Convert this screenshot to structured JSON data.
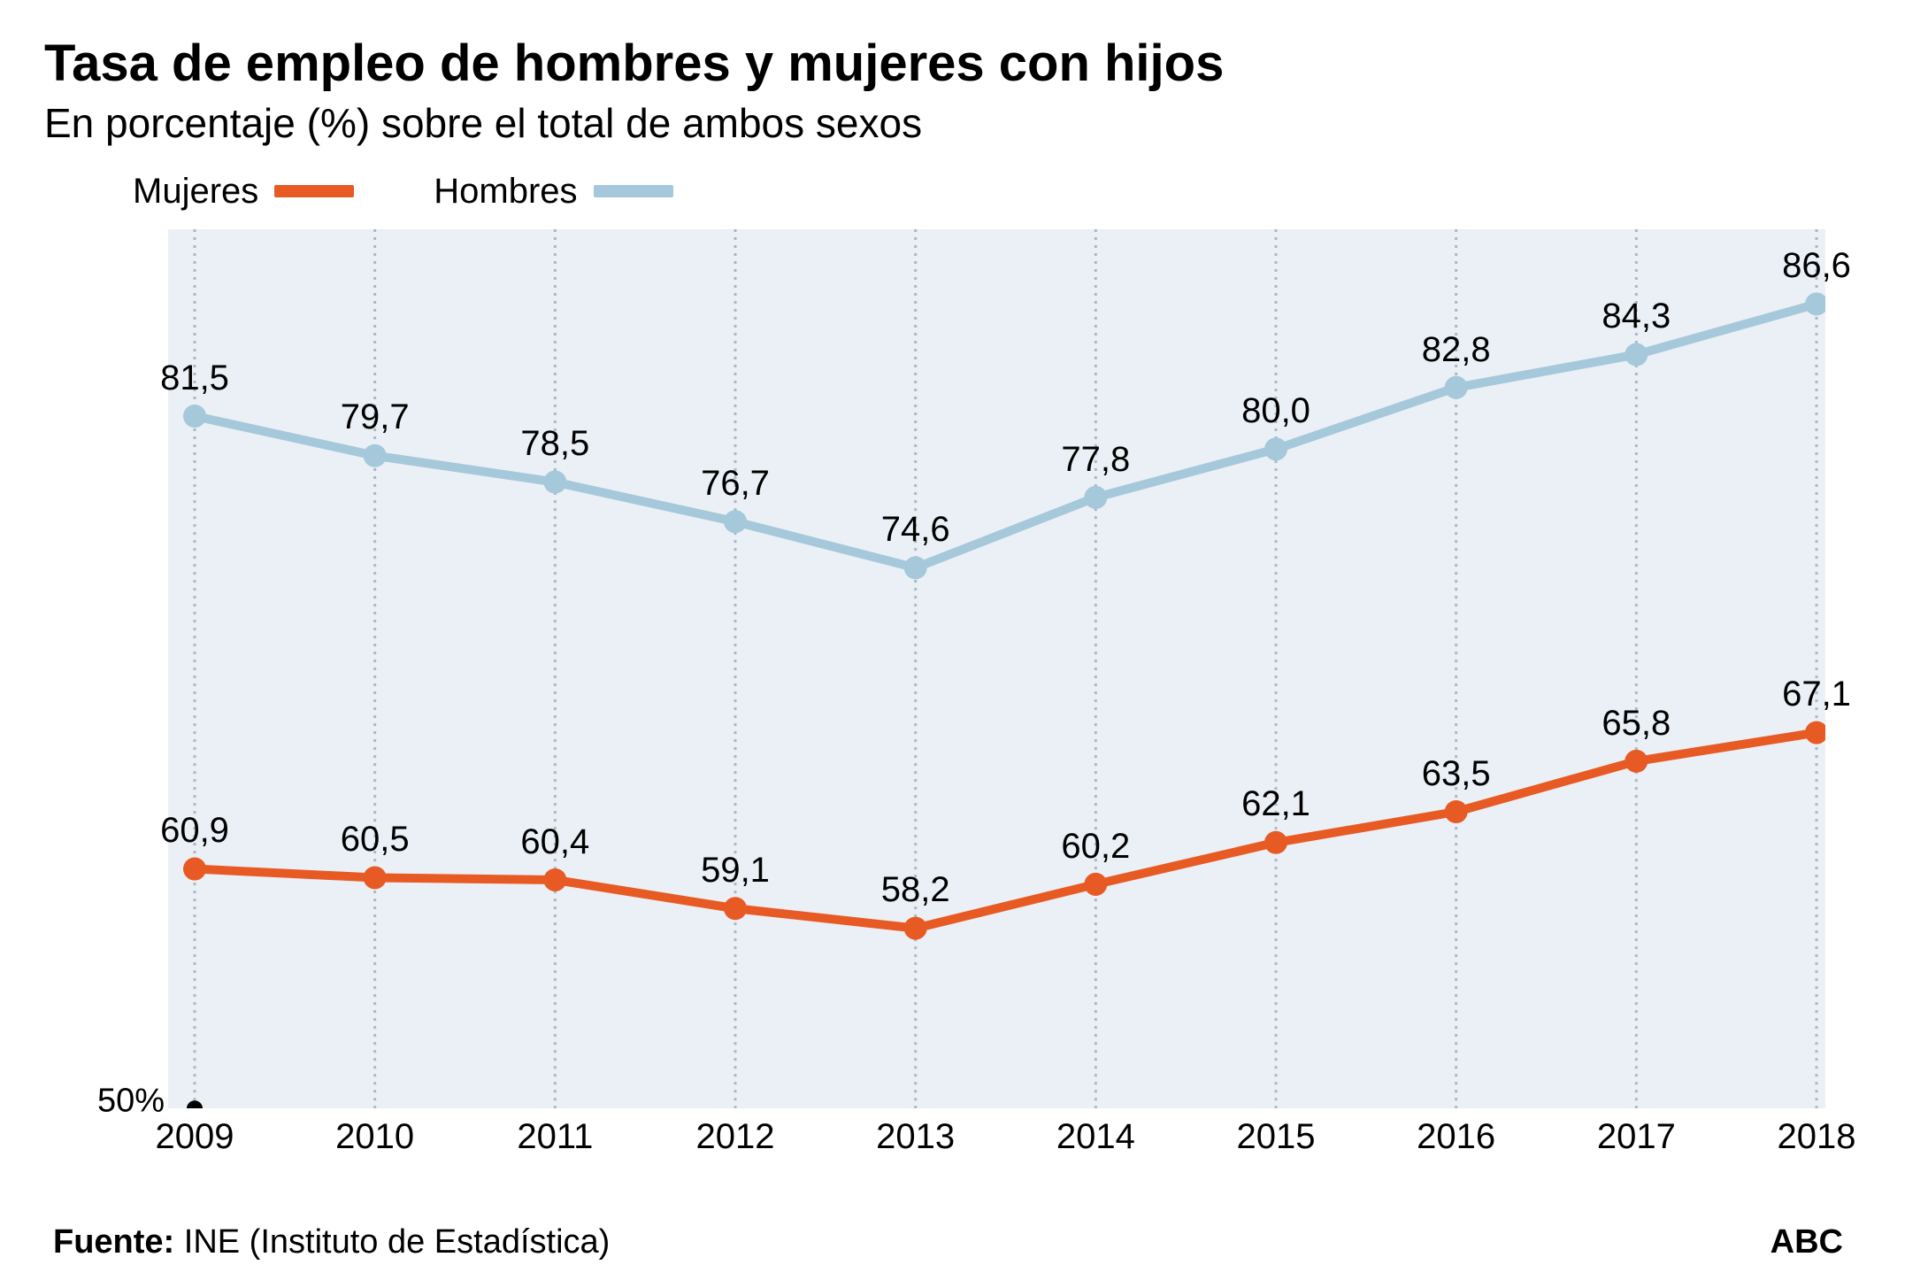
{
  "title": "Tasa de empleo de hombres y mujeres con hijos",
  "subtitle": "En porcentaje (%) sobre el total de ambos sexos",
  "legend": {
    "series1": {
      "label": "Mujeres",
      "color": "#e85a24"
    },
    "series2": {
      "label": "Hombres",
      "color": "#a5c8db"
    }
  },
  "chart": {
    "type": "line",
    "background_color": "#eaf0f5",
    "grid_color": "#a9b8c2",
    "grid_dash": "3,6",
    "x_categories": [
      "2009",
      "2010",
      "2011",
      "2012",
      "2013",
      "2014",
      "2015",
      "2016",
      "2017",
      "2018"
    ],
    "y_min": 50,
    "y_max": 90,
    "y_baseline_label": "50%",
    "baseline_dot_color": "#000000",
    "series": [
      {
        "name": "Hombres",
        "color": "#a5c8db",
        "line_width": 10,
        "marker_radius": 13,
        "values": [
          81.5,
          79.7,
          78.5,
          76.7,
          74.6,
          77.8,
          80.0,
          82.8,
          84.3,
          86.6
        ],
        "labels": [
          "81,5",
          "79,7",
          "78,5",
          "76,7",
          "74,6",
          "77,8",
          "80,0",
          "82,8",
          "84,3",
          "86,6"
        ]
      },
      {
        "name": "Mujeres",
        "color": "#e85a24",
        "line_width": 10,
        "marker_radius": 13,
        "values": [
          60.9,
          60.5,
          60.4,
          59.1,
          58.2,
          60.2,
          62.1,
          63.5,
          65.8,
          67.1
        ],
        "labels": [
          "60,9",
          "60,5",
          "60,4",
          "59,1",
          "58,2",
          "60,2",
          "62,1",
          "63,5",
          "65,8",
          "67,1"
        ]
      }
    ],
    "label_fontsize": 40,
    "axis_fontsize": 40
  },
  "footer": {
    "source_label": "Fuente:",
    "source_text": "INE (Instituto de Estadística)",
    "brand": "ABC"
  }
}
